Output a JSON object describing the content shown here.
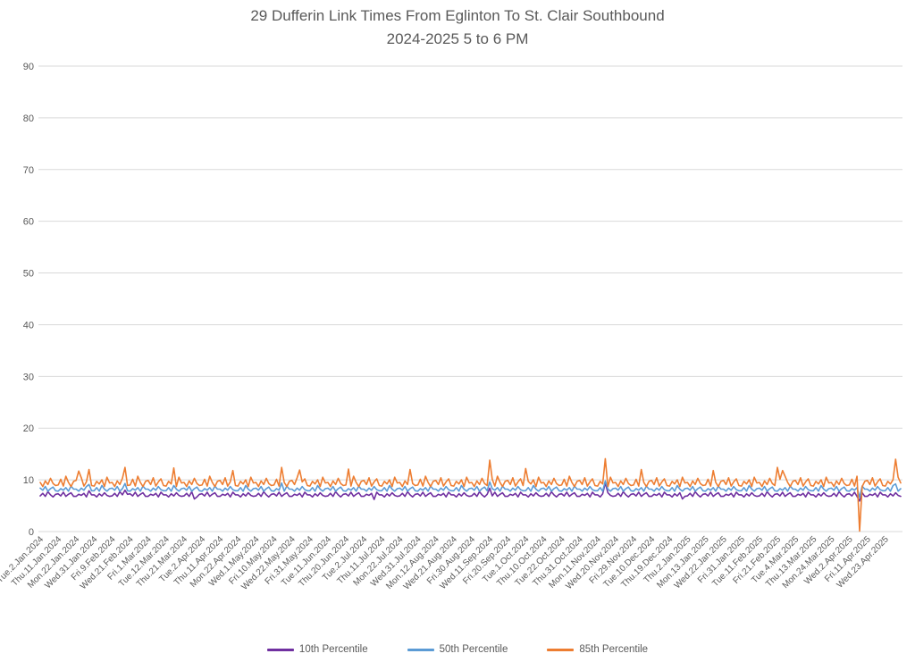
{
  "chart_data": {
    "type": "line",
    "title": "29 Dufferin Link Times From Eglinton To St. Clair Southbound",
    "subtitle": "2024-2025 5 to 6 PM",
    "xlabel": "",
    "ylabel": "",
    "ylim": [
      0,
      90
    ],
    "y_ticks": [
      0,
      10,
      20,
      30,
      40,
      50,
      60,
      70,
      80,
      90
    ],
    "grid": "horizontal",
    "grid_color": "#D9D9D9",
    "axis_text_color": "#595959",
    "title_color": "#595959",
    "legend_position": "bottom",
    "x_ticks_every": 7,
    "x_tick_labels": [
      "Tue.2.Jan.2024",
      "Thu.11.Jan.2024",
      "Mon.22.Jan.2024",
      "Wed.31.Jan.2024",
      "Fri.9.Feb.2024",
      "Wed.21.Feb.2024",
      "Fri.1.Mar.2024",
      "Tue.12.Mar.2024",
      "Thu.21.Mar.2024",
      "Tue.2.Apr.2024",
      "Thu.11.Apr.2024",
      "Mon.22.Apr.2024",
      "Wed.1.May.2024",
      "Fri.10.May.2024",
      "Wed.22.May.2024",
      "Fri.31.May.2024",
      "Tue.11.Jun.2024",
      "Thu.20.Jun.2024",
      "Tue.2.Jul.2024",
      "Thu.11.Jul.2024",
      "Mon.22.Jul.2024",
      "Wed.31.Jul.2024",
      "Mon.12.Aug.2024",
      "Wed.21.Aug.2024",
      "Fri.30.Aug.2024",
      "Wed.11.Sep.2024",
      "Fri.20.Sep.2024",
      "Tue.1.Oct.2024",
      "Thu.10.Oct.2024",
      "Tue.22.Oct.2024",
      "Thu.31.Oct.2024",
      "Mon.11.Nov.2024",
      "Wed.20.Nov.2024",
      "Fri.29.Nov.2024",
      "Tue.10.Dec.2024",
      "Thu.19.Dec.2024",
      "Thu.2.Jan.2025",
      "Mon.13.Jan.2025",
      "Wed.22.Jan.2025",
      "Fri.31.Jan.2025",
      "Tue.11.Feb.2025",
      "Fri.21.Feb.2025",
      "Tue.4.Mar.2025",
      "Thu.13.Mar.2025",
      "Mon.24.Mar.2025",
      "Wed.2.Apr.2025",
      "Fri.11.Apr.2025",
      "Wed.23.Apr.2025"
    ],
    "series": [
      {
        "name": "10th Percentile",
        "color": "#7030A0",
        "values": [
          6.9,
          7.4,
          6.8,
          7.7,
          7.1,
          6.7,
          7.2,
          7.3,
          6.9,
          7.6,
          6.8,
          7.2,
          7.5,
          6.8,
          6.8,
          7.2,
          7.0,
          7.4,
          6.7,
          7.9,
          7.1,
          7.1,
          6.7,
          7.3,
          6.9,
          7.5,
          7.0,
          6.8,
          6.9,
          7.4,
          6.8,
          7.7,
          7.1,
          8.0,
          7.2,
          7.3,
          6.9,
          7.6,
          6.8,
          7.2,
          7.5,
          6.8,
          6.8,
          7.2,
          7.0,
          7.4,
          6.7,
          7.6,
          7.1,
          7.1,
          6.7,
          7.3,
          6.9,
          7.5,
          7.0,
          6.8,
          6.9,
          7.4,
          6.8,
          7.7,
          6.3,
          6.7,
          7.2,
          7.3,
          6.9,
          7.6,
          6.8,
          7.2,
          7.5,
          6.8,
          6.8,
          7.2,
          7.0,
          7.4,
          6.7,
          7.6,
          7.1,
          7.1,
          6.7,
          7.3,
          6.9,
          7.5,
          7.0,
          6.8,
          6.9,
          7.4,
          6.8,
          7.7,
          7.1,
          6.7,
          7.2,
          7.3,
          6.9,
          7.6,
          6.8,
          7.2,
          7.5,
          6.8,
          6.8,
          7.2,
          7.0,
          7.4,
          6.7,
          7.6,
          7.1,
          7.1,
          6.7,
          7.3,
          6.9,
          7.5,
          7.0,
          6.8,
          6.9,
          7.4,
          6.8,
          7.7,
          7.1,
          6.7,
          7.2,
          7.3,
          6.9,
          7.6,
          6.8,
          7.2,
          7.5,
          6.8,
          6.8,
          7.2,
          7.0,
          7.4,
          6.2,
          7.6,
          7.1,
          7.1,
          6.7,
          7.3,
          6.9,
          7.5,
          7.0,
          6.8,
          6.9,
          7.4,
          6.8,
          7.7,
          7.1,
          6.7,
          7.2,
          7.3,
          6.9,
          7.6,
          6.8,
          7.2,
          7.5,
          6.8,
          6.8,
          7.2,
          7.0,
          7.4,
          6.7,
          7.6,
          7.1,
          7.1,
          6.7,
          7.3,
          6.9,
          7.5,
          7.0,
          6.8,
          6.9,
          7.4,
          6.8,
          7.7,
          7.1,
          6.7,
          7.2,
          8.4,
          6.9,
          7.6,
          6.8,
          7.2,
          7.5,
          6.8,
          6.8,
          7.2,
          7.0,
          7.4,
          6.7,
          7.6,
          7.1,
          7.1,
          6.7,
          7.3,
          6.9,
          7.5,
          7.0,
          6.8,
          6.9,
          7.4,
          6.8,
          7.7,
          7.1,
          6.7,
          7.2,
          7.3,
          6.9,
          7.6,
          6.8,
          7.2,
          7.5,
          6.8,
          6.8,
          7.2,
          7.0,
          7.4,
          6.7,
          7.6,
          7.1,
          7.1,
          6.7,
          7.3,
          9.4,
          7.5,
          7.0,
          6.8,
          6.9,
          7.4,
          6.8,
          7.7,
          7.1,
          6.7,
          7.2,
          7.3,
          6.9,
          7.6,
          6.8,
          7.2,
          7.5,
          6.8,
          6.8,
          7.2,
          7.0,
          7.4,
          6.7,
          7.6,
          7.1,
          7.1,
          6.7,
          7.3,
          6.9,
          7.5,
          6.3,
          6.8,
          6.9,
          7.4,
          6.8,
          7.7,
          7.1,
          6.7,
          7.2,
          7.3,
          6.9,
          7.6,
          6.8,
          7.2,
          7.5,
          6.8,
          6.8,
          7.2,
          7.0,
          7.4,
          6.7,
          7.6,
          7.1,
          7.1,
          6.7,
          7.3,
          6.9,
          7.5,
          7.0,
          6.8,
          6.9,
          7.4,
          6.8,
          7.7,
          7.1,
          6.7,
          7.2,
          7.3,
          6.9,
          7.6,
          6.8,
          7.2,
          7.5,
          6.8,
          6.8,
          7.2,
          7.0,
          7.4,
          6.7,
          7.6,
          7.1,
          7.1,
          6.7,
          7.3,
          6.9,
          7.5,
          7.0,
          6.8,
          6.9,
          7.4,
          6.8,
          7.7,
          7.1,
          6.7,
          7.2,
          7.3,
          6.9,
          7.6,
          6.8,
          5.9,
          7.5,
          6.8,
          6.8,
          7.2,
          7.0,
          7.4,
          6.7,
          7.6,
          7.1,
          7.1,
          6.7,
          7.3,
          6.9,
          7.5,
          7.0,
          6.8
        ]
      },
      {
        "name": "50th Percentile",
        "color": "#5B9BD5",
        "values": [
          8.4,
          8.0,
          8.7,
          7.8,
          8.3,
          8.6,
          7.9,
          7.8,
          8.3,
          8.0,
          8.5,
          7.8,
          8.8,
          8.2,
          8.2,
          7.8,
          8.4,
          8.0,
          8.7,
          9.1,
          7.9,
          7.9,
          8.5,
          7.8,
          8.9,
          8.2,
          7.8,
          8.3,
          8.4,
          8.0,
          8.7,
          7.8,
          8.3,
          9.3,
          7.9,
          7.8,
          8.3,
          8.0,
          8.5,
          7.8,
          8.8,
          8.2,
          8.2,
          7.8,
          8.4,
          8.0,
          8.7,
          8.1,
          7.9,
          7.9,
          8.5,
          7.8,
          8.9,
          8.2,
          7.8,
          8.3,
          8.4,
          8.0,
          8.7,
          7.8,
          8.3,
          8.6,
          7.9,
          7.8,
          8.3,
          8.0,
          8.5,
          7.8,
          8.8,
          8.2,
          8.2,
          7.8,
          8.4,
          8.0,
          8.7,
          8.1,
          7.9,
          7.9,
          8.5,
          7.8,
          8.9,
          8.2,
          7.8,
          8.3,
          8.4,
          8.0,
          8.7,
          7.8,
          8.3,
          8.6,
          7.9,
          7.8,
          8.3,
          8.0,
          9.4,
          7.8,
          8.8,
          8.2,
          8.2,
          7.8,
          8.4,
          8.0,
          8.7,
          8.1,
          7.9,
          7.9,
          8.5,
          7.8,
          8.9,
          8.2,
          7.8,
          8.3,
          8.4,
          8.0,
          8.7,
          7.8,
          8.3,
          8.6,
          7.9,
          7.8,
          8.3,
          8.0,
          8.5,
          7.8,
          8.8,
          8.2,
          8.2,
          7.8,
          8.4,
          8.0,
          8.7,
          8.1,
          7.9,
          7.9,
          8.5,
          7.8,
          8.9,
          8.2,
          7.8,
          8.3,
          8.4,
          8.0,
          8.7,
          7.8,
          8.3,
          8.6,
          7.9,
          7.8,
          8.3,
          8.0,
          8.5,
          7.8,
          8.8,
          8.2,
          8.2,
          7.8,
          8.4,
          8.0,
          8.7,
          8.1,
          7.9,
          7.9,
          8.5,
          7.8,
          8.9,
          8.2,
          7.8,
          8.3,
          8.4,
          8.0,
          8.7,
          7.8,
          8.3,
          8.6,
          7.9,
          9.6,
          8.3,
          8.0,
          8.5,
          7.8,
          8.8,
          8.2,
          8.2,
          7.8,
          8.4,
          8.0,
          8.7,
          8.1,
          7.9,
          7.9,
          8.5,
          7.8,
          8.9,
          8.2,
          7.8,
          8.3,
          8.4,
          8.0,
          8.7,
          7.8,
          8.3,
          8.6,
          7.9,
          7.8,
          8.3,
          8.0,
          8.5,
          7.8,
          8.8,
          8.2,
          8.2,
          7.8,
          8.4,
          8.0,
          8.7,
          8.1,
          7.9,
          7.9,
          8.5,
          7.8,
          9.8,
          8.2,
          7.8,
          8.3,
          8.4,
          8.0,
          8.7,
          7.8,
          8.3,
          8.6,
          7.9,
          7.8,
          8.3,
          8.0,
          8.5,
          7.8,
          8.8,
          8.2,
          8.2,
          7.8,
          8.4,
          8.0,
          8.7,
          8.1,
          7.9,
          7.9,
          8.5,
          7.8,
          8.9,
          8.2,
          7.8,
          8.3,
          8.4,
          8.0,
          8.7,
          7.8,
          8.3,
          8.6,
          7.9,
          7.8,
          8.3,
          8.0,
          8.5,
          7.8,
          8.8,
          8.2,
          8.2,
          7.8,
          8.4,
          8.0,
          8.7,
          8.1,
          7.9,
          7.9,
          8.5,
          7.8,
          8.9,
          8.2,
          7.8,
          8.3,
          8.4,
          8.0,
          8.7,
          7.8,
          8.3,
          8.6,
          7.9,
          7.8,
          8.3,
          8.0,
          8.5,
          7.8,
          8.8,
          8.2,
          8.2,
          7.8,
          8.4,
          8.0,
          8.7,
          8.1,
          7.9,
          7.9,
          8.5,
          7.8,
          8.9,
          8.2,
          7.8,
          8.3,
          8.4,
          8.0,
          8.7,
          7.8,
          8.3,
          8.6,
          7.9,
          7.8,
          8.3,
          8.0,
          8.5,
          6.6,
          8.8,
          8.2,
          8.2,
          7.8,
          8.4,
          8.0,
          8.7,
          8.1,
          7.9,
          7.9,
          8.5,
          7.8,
          8.9,
          9.2,
          7.8,
          8.3
        ]
      },
      {
        "name": "85th Percentile",
        "color": "#ED7D31",
        "values": [
          9.5,
          8.7,
          9.8,
          9.1,
          10.3,
          9.3,
          8.9,
          9.0,
          10.1,
          8.8,
          10.7,
          9.5,
          8.7,
          9.7,
          9.9,
          11.7,
          10.4,
          8.8,
          9.6,
          12.0,
          8.9,
          8.8,
          9.7,
          9.2,
          10.0,
          8.7,
          10.5,
          9.4,
          9.5,
          8.7,
          9.8,
          9.1,
          10.3,
          12.4,
          8.9,
          9.0,
          10.1,
          8.8,
          10.7,
          9.5,
          8.7,
          9.7,
          9.9,
          9.1,
          10.4,
          8.8,
          9.6,
          10.2,
          8.9,
          8.8,
          9.7,
          9.2,
          12.3,
          8.7,
          10.5,
          9.4,
          9.5,
          8.7,
          9.8,
          9.1,
          10.3,
          9.3,
          8.9,
          9.0,
          10.1,
          8.8,
          10.7,
          9.5,
          8.7,
          9.7,
          9.9,
          9.1,
          10.4,
          8.8,
          9.6,
          11.8,
          8.9,
          8.8,
          9.7,
          9.2,
          10.0,
          8.7,
          10.5,
          9.4,
          9.5,
          8.7,
          9.8,
          9.1,
          10.3,
          9.3,
          8.9,
          9.0,
          10.1,
          8.8,
          12.4,
          9.5,
          8.7,
          9.7,
          9.9,
          9.1,
          10.4,
          11.9,
          9.6,
          10.2,
          8.9,
          8.8,
          9.7,
          9.2,
          10.0,
          8.7,
          10.5,
          9.4,
          9.5,
          8.7,
          9.8,
          9.1,
          10.3,
          9.3,
          8.9,
          9.0,
          12.1,
          8.8,
          10.7,
          9.5,
          8.7,
          9.7,
          9.9,
          9.1,
          10.4,
          8.8,
          9.6,
          10.2,
          8.9,
          8.8,
          9.7,
          9.2,
          10.0,
          8.7,
          10.5,
          9.4,
          9.5,
          8.7,
          9.8,
          9.1,
          12.0,
          9.3,
          8.9,
          9.0,
          10.1,
          8.8,
          10.7,
          9.5,
          8.7,
          9.7,
          9.9,
          9.1,
          10.4,
          8.8,
          9.6,
          10.2,
          8.9,
          8.8,
          9.7,
          9.2,
          10.0,
          8.7,
          10.5,
          9.4,
          9.5,
          8.7,
          9.8,
          9.1,
          10.3,
          9.3,
          8.9,
          13.8,
          10.1,
          8.8,
          10.7,
          9.5,
          8.7,
          9.7,
          9.9,
          9.1,
          10.4,
          8.8,
          9.6,
          10.2,
          8.9,
          12.2,
          9.7,
          9.2,
          10.0,
          8.7,
          10.5,
          9.4,
          9.5,
          8.7,
          9.8,
          9.1,
          10.3,
          9.3,
          8.9,
          9.0,
          10.1,
          8.8,
          10.7,
          9.5,
          8.7,
          9.7,
          9.9,
          9.1,
          10.4,
          8.8,
          9.6,
          10.2,
          8.9,
          8.8,
          9.7,
          9.2,
          14.1,
          8.7,
          10.5,
          9.4,
          9.5,
          8.7,
          9.8,
          9.1,
          10.3,
          9.3,
          8.9,
          9.0,
          10.1,
          8.8,
          12.0,
          9.5,
          8.7,
          9.7,
          9.9,
          9.1,
          10.4,
          8.8,
          9.6,
          10.2,
          8.9,
          8.8,
          9.7,
          9.2,
          10.0,
          8.7,
          10.5,
          9.4,
          9.5,
          8.7,
          9.8,
          9.1,
          10.3,
          9.3,
          8.9,
          9.0,
          10.1,
          8.8,
          11.8,
          9.5,
          8.7,
          9.7,
          9.9,
          9.1,
          10.4,
          8.8,
          9.6,
          10.2,
          8.9,
          8.8,
          9.7,
          9.2,
          10.0,
          8.7,
          10.5,
          9.4,
          9.5,
          8.7,
          9.8,
          9.1,
          10.3,
          9.3,
          8.9,
          12.4,
          10.1,
          11.8,
          10.7,
          9.5,
          8.7,
          9.7,
          9.9,
          9.1,
          10.4,
          8.8,
          9.6,
          10.2,
          8.9,
          8.8,
          9.7,
          9.2,
          10.0,
          8.7,
          10.5,
          9.4,
          9.5,
          8.7,
          9.8,
          9.1,
          10.3,
          9.3,
          8.9,
          9.0,
          10.1,
          8.8,
          10.7,
          0.1,
          8.7,
          9.7,
          9.9,
          9.1,
          10.4,
          8.8,
          9.6,
          10.2,
          8.9,
          8.8,
          9.7,
          9.2,
          10.0,
          14.0,
          10.5,
          9.4
        ]
      }
    ]
  }
}
